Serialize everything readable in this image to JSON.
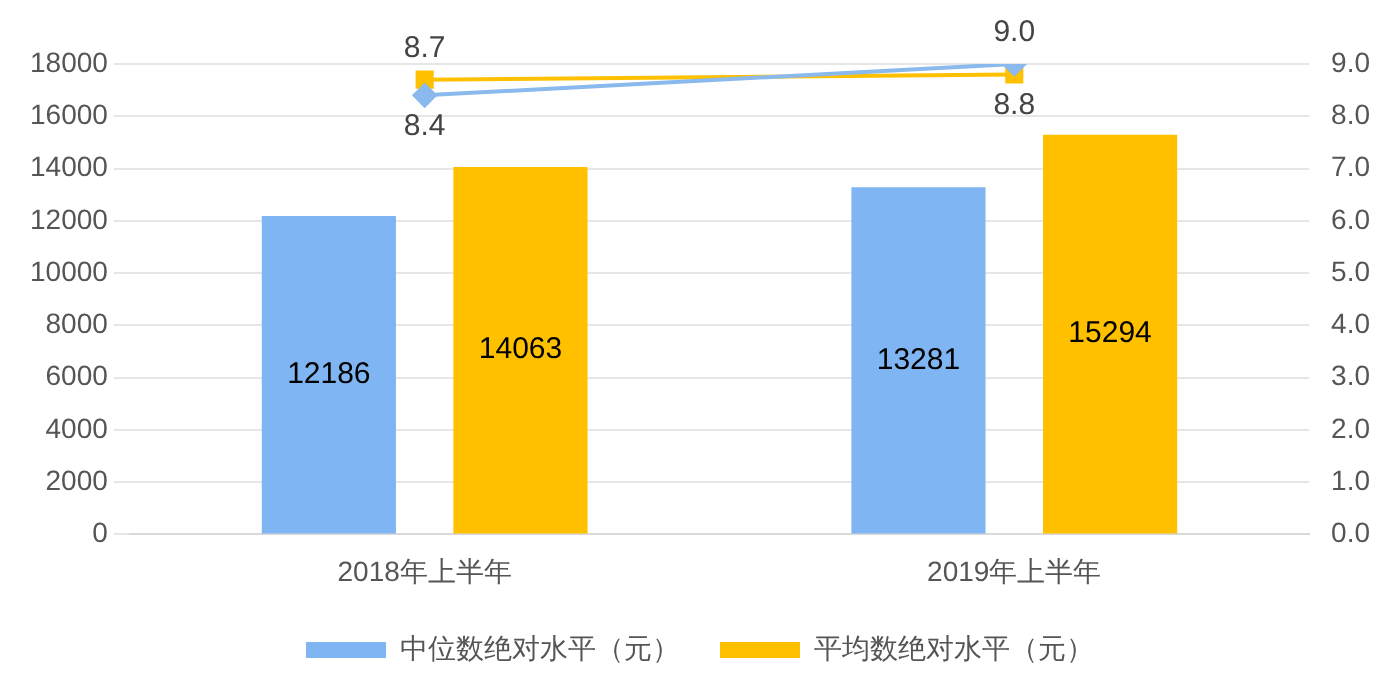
{
  "chart_data": {
    "type": "bar",
    "categories": [
      "2018年上半年",
      "2019年上半年"
    ],
    "series": [
      {
        "name": "中位数绝对水平（元）",
        "color": "#7fb5f2",
        "values": [
          12186,
          13281
        ]
      },
      {
        "name": "平均数绝对水平（元）",
        "color": "#ffc000",
        "values": [
          14063,
          15294
        ]
      },
      {
        "type": "line",
        "axis": "y2",
        "color": "#8ab9ee",
        "marker": "diamond",
        "values": [
          8.4,
          9.0
        ],
        "value_labels": [
          "8.4",
          "9.0"
        ]
      },
      {
        "type": "line",
        "axis": "y2",
        "color": "#ffc000",
        "marker": "square",
        "values": [
          8.7,
          8.8
        ],
        "value_labels": [
          "8.7",
          "8.8"
        ]
      }
    ],
    "ylim": [
      0,
      18000
    ],
    "yticks": [
      0,
      2000,
      4000,
      6000,
      8000,
      10000,
      12000,
      14000,
      16000,
      18000
    ],
    "y2lim": [
      0,
      9
    ],
    "y2ticks": [
      {
        "value": 0,
        "label": "0.0"
      },
      {
        "value": 1,
        "label": "1.0"
      },
      {
        "value": 2,
        "label": "2.0"
      },
      {
        "value": 3,
        "label": "3.0"
      },
      {
        "value": 4,
        "label": "4.0"
      },
      {
        "value": 5,
        "label": "5.0"
      },
      {
        "value": 6,
        "label": "6.0"
      },
      {
        "value": 7,
        "label": "7.0"
      },
      {
        "value": 8,
        "label": "8.0"
      },
      {
        "value": 9,
        "label": "9.0"
      }
    ],
    "grid": "y",
    "legend": "bottom",
    "data_labels": true
  }
}
